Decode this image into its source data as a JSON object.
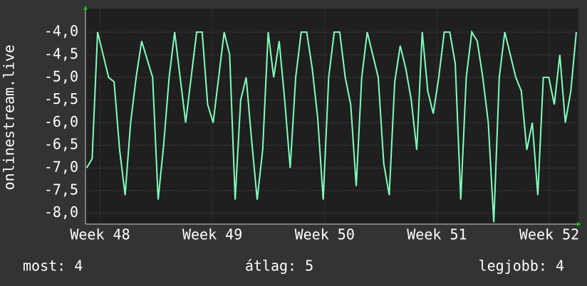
{
  "chart_data": {
    "type": "line",
    "y_label": "onlinestream.live",
    "x": [
      47.88,
      47.929,
      47.978,
      48.027,
      48.076,
      48.125,
      48.174,
      48.223,
      48.272,
      48.321,
      48.37,
      48.419,
      48.468,
      48.517,
      48.566,
      48.615,
      48.664,
      48.713,
      48.762,
      48.811,
      48.86,
      48.909,
      48.958,
      49.007,
      49.056,
      49.105,
      49.154,
      49.203,
      49.252,
      49.301,
      49.35,
      49.399,
      49.448,
      49.497,
      49.546,
      49.595,
      49.644,
      49.693,
      49.742,
      49.791,
      49.84,
      49.889,
      49.938,
      49.987,
      50.036,
      50.085,
      50.134,
      50.183,
      50.232,
      50.281,
      50.33,
      50.379,
      50.428,
      50.477,
      50.526,
      50.575,
      50.624,
      50.673,
      50.722,
      50.771,
      50.82,
      50.869,
      50.918,
      50.967,
      51.016,
      51.065,
      51.114,
      51.163,
      51.212,
      51.261,
      51.31,
      51.359,
      51.408,
      51.457,
      51.506,
      51.555,
      51.604,
      51.653,
      51.702,
      51.751,
      51.8,
      51.849,
      51.898,
      51.947,
      51.996,
      52.045,
      52.094,
      52.143,
      52.192,
      52.241
    ],
    "series": [
      {
        "color": "#80ffbf",
        "values": [
          -7.0,
          -6.8,
          -4.0,
          -4.5,
          -5.0,
          -5.1,
          -6.6,
          -7.6,
          -6.0,
          -5.0,
          -4.2,
          -4.6,
          -5.0,
          -7.7,
          -6.5,
          -5.0,
          -4.0,
          -5.0,
          -6.0,
          -5.0,
          -4.0,
          -4.0,
          -5.6,
          -6.0,
          -5.0,
          -4.0,
          -4.5,
          -7.7,
          -5.5,
          -5.0,
          -6.4,
          -7.7,
          -6.6,
          -4.0,
          -5.0,
          -4.2,
          -5.5,
          -7.0,
          -5.0,
          -4.0,
          -4.0,
          -4.8,
          -5.9,
          -7.7,
          -5.0,
          -4.0,
          -4.0,
          -5.0,
          -5.6,
          -7.4,
          -5.0,
          -4.0,
          -4.5,
          -5.0,
          -6.9,
          -7.6,
          -5.1,
          -4.3,
          -4.8,
          -5.5,
          -6.6,
          -4.0,
          -5.3,
          -5.8,
          -5.0,
          -4.0,
          -4.0,
          -4.7,
          -7.7,
          -5.0,
          -4.0,
          -4.2,
          -5.0,
          -6.0,
          -8.2,
          -5.0,
          -4.0,
          -4.5,
          -5.0,
          -5.3,
          -6.6,
          -6.0,
          -7.6,
          -5.0,
          -5.0,
          -5.6,
          -4.5,
          -6.0,
          -5.3,
          -4.0
        ]
      }
    ],
    "xlim": [
      47.87,
      52.26
    ],
    "xticks": [
      {
        "value": 48,
        "label": "Week 48"
      },
      {
        "value": 49,
        "label": "Week 49"
      },
      {
        "value": 50,
        "label": "Week 50"
      },
      {
        "value": 51,
        "label": "Week 51"
      },
      {
        "value": 52,
        "label": "Week 52"
      }
    ],
    "ylim": [
      -8.24,
      -3.48
    ],
    "yticks": [
      {
        "value": -8.0,
        "label": "-8,0"
      },
      {
        "value": -7.5,
        "label": "-7,5"
      },
      {
        "value": -7.0,
        "label": "-7,0"
      },
      {
        "value": -6.5,
        "label": "-6,5"
      },
      {
        "value": -6.0,
        "label": "-6,0"
      },
      {
        "value": -5.5,
        "label": "-5,5"
      },
      {
        "value": -5.0,
        "label": "-5,0"
      },
      {
        "value": -4.5,
        "label": "-4,5"
      },
      {
        "value": -4.0,
        "label": "-4,0"
      }
    ],
    "grid": true,
    "footer": [
      "most: 4",
      "átlag: 5",
      "legjobb: 4"
    ]
  }
}
